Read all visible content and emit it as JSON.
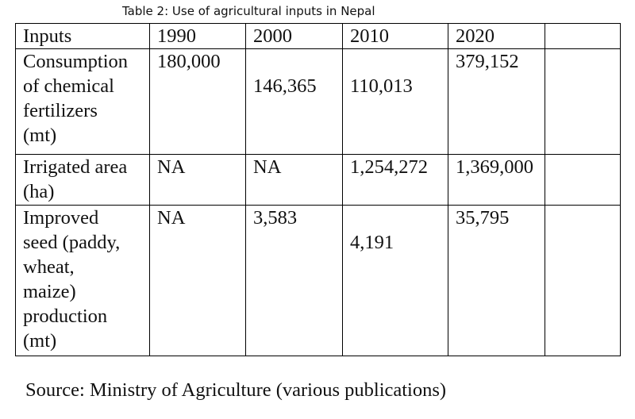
{
  "caption": "Table 2: Use of agricultural inputs in Nepal",
  "table": {
    "header": [
      "Inputs",
      "1990",
      "2000",
      "2010",
      "2020",
      ""
    ],
    "rows": [
      {
        "label": [
          "Consumption",
          "of chemical",
          "fertilizers",
          "(mt)"
        ],
        "v1990": "180,000",
        "v2000": "146,365",
        "v2010": "110,013",
        "v2020": "379,152"
      },
      {
        "label": [
          "Irrigated area",
          "(ha)"
        ],
        "v1990": "NA",
        "v2000": "NA",
        "v2010": "1,254,272",
        "v2020": "1,369,000"
      },
      {
        "label": [
          "Improved",
          "seed (paddy,",
          "wheat,",
          "maize)",
          "production",
          "(mt)"
        ],
        "v1990": "NA",
        "v2000": "3,583",
        "v2010": "4,191",
        "v2020": "35,795"
      }
    ]
  },
  "source": "Source: Ministry of Agriculture (various publications)"
}
